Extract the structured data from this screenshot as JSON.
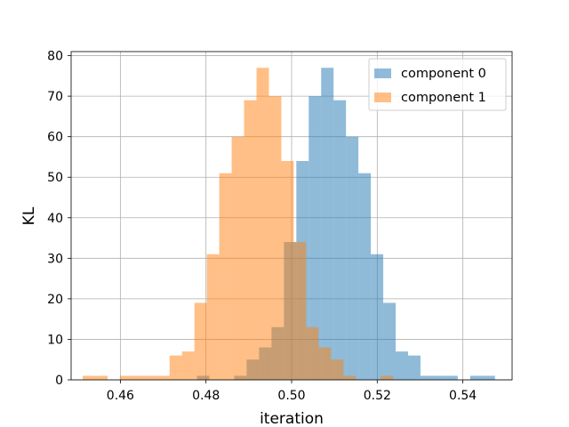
{
  "chart_data": {
    "type": "histogram",
    "title": "",
    "xlabel": "iteration",
    "ylabel": "KL",
    "xlim": [
      0.4485,
      0.5515
    ],
    "ylim": [
      0,
      81
    ],
    "xticks": [
      0.46,
      0.48,
      0.5,
      0.52,
      0.54
    ],
    "xtick_labels": [
      "0.46",
      "0.48",
      "0.50",
      "0.52",
      "0.54"
    ],
    "yticks": [
      0,
      10,
      20,
      30,
      40,
      50,
      60,
      70,
      80
    ],
    "ytick_labels": [
      "0",
      "10",
      "20",
      "30",
      "40",
      "50",
      "60",
      "70",
      "80"
    ],
    "grid": true,
    "legend_position": "top-right",
    "series": [
      {
        "name": "component 0",
        "color": "#1f77b4",
        "alpha": 0.5,
        "bins": [
          [
            0.4779,
            0.4808,
            1
          ],
          [
            0.4866,
            0.4895,
            1
          ],
          [
            0.4895,
            0.4924,
            5
          ],
          [
            0.4924,
            0.4953,
            8
          ],
          [
            0.4953,
            0.4982,
            13
          ],
          [
            0.4982,
            0.5011,
            34
          ],
          [
            0.5011,
            0.504,
            54
          ],
          [
            0.504,
            0.5069,
            70
          ],
          [
            0.5069,
            0.5098,
            77
          ],
          [
            0.5098,
            0.5127,
            69
          ],
          [
            0.5127,
            0.5156,
            60
          ],
          [
            0.5156,
            0.5185,
            51
          ],
          [
            0.5185,
            0.5214,
            31
          ],
          [
            0.5214,
            0.5243,
            19
          ],
          [
            0.5243,
            0.5272,
            7
          ],
          [
            0.5272,
            0.5301,
            6
          ],
          [
            0.5301,
            0.533,
            1
          ],
          [
            0.533,
            0.5359,
            1
          ],
          [
            0.5359,
            0.5388,
            1
          ],
          [
            0.5417,
            0.5446,
            1
          ],
          [
            0.5446,
            0.5475,
            1
          ]
        ]
      },
      {
        "name": "component 1",
        "color": "#ff7f0e",
        "alpha": 0.5,
        "bins": [
          [
            0.4512,
            0.4541,
            1
          ],
          [
            0.4541,
            0.457,
            1
          ],
          [
            0.4599,
            0.4628,
            1
          ],
          [
            0.4628,
            0.4657,
            1
          ],
          [
            0.4657,
            0.4686,
            1
          ],
          [
            0.4686,
            0.4715,
            1
          ],
          [
            0.4715,
            0.4744,
            6
          ],
          [
            0.4744,
            0.4773,
            7
          ],
          [
            0.4773,
            0.4802,
            19
          ],
          [
            0.4802,
            0.4831,
            31
          ],
          [
            0.4831,
            0.486,
            51
          ],
          [
            0.486,
            0.4889,
            60
          ],
          [
            0.4889,
            0.4918,
            69
          ],
          [
            0.4918,
            0.4947,
            77
          ],
          [
            0.4947,
            0.4976,
            70
          ],
          [
            0.4976,
            0.5005,
            54
          ],
          [
            0.5005,
            0.5034,
            34
          ],
          [
            0.5034,
            0.5063,
            13
          ],
          [
            0.5063,
            0.5092,
            8
          ],
          [
            0.5092,
            0.5121,
            5
          ],
          [
            0.5121,
            0.515,
            1
          ],
          [
            0.5208,
            0.5237,
            1
          ]
        ]
      }
    ]
  }
}
